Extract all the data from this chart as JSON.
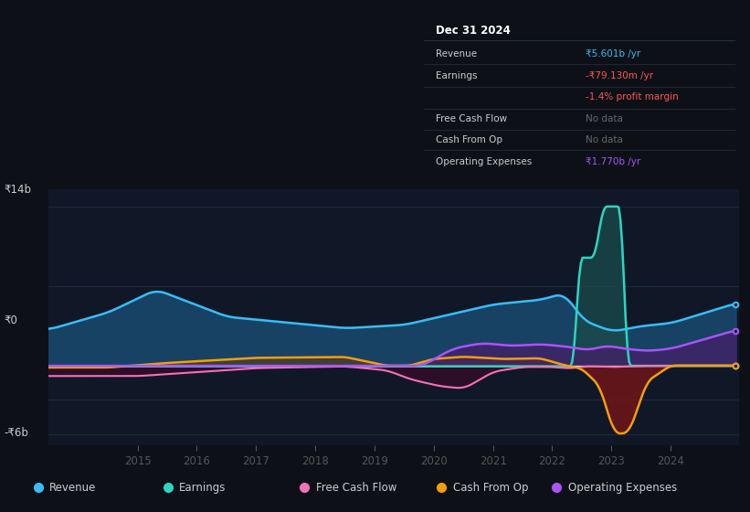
{
  "background_color": "#0d1117",
  "plot_bg_color": "#101828",
  "colors": {
    "revenue": "#38bdf8",
    "earnings": "#2dd4bf",
    "free_cash_flow": "#f472b6",
    "cash_from_op": "#f59e0b",
    "operating_expenses": "#a855f7"
  },
  "ylabel_top": "₹14b",
  "ylabel_zero": "₹0",
  "ylabel_bottom": "-₹6b",
  "xticks": [
    2015,
    2016,
    2017,
    2018,
    2019,
    2020,
    2021,
    2022,
    2023,
    2024
  ],
  "info_box": {
    "title": "Dec 31 2024",
    "revenue_label": "Revenue",
    "revenue_val": "₹5.601b /yr",
    "earnings_label": "Earnings",
    "earnings_val": "-₹79.130m /yr",
    "profit_margin": "-1.4% profit margin",
    "fcf_label": "Free Cash Flow",
    "fcf_val": "No data",
    "cashop_label": "Cash From Op",
    "cashop_val": "No data",
    "opex_label": "Operating Expenses",
    "opex_val": "₹1.770b /yr"
  },
  "legend": [
    {
      "label": "Revenue",
      "color": "#38bdf8"
    },
    {
      "label": "Earnings",
      "color": "#2dd4bf"
    },
    {
      "label": "Free Cash Flow",
      "color": "#f472b6"
    },
    {
      "label": "Cash From Op",
      "color": "#f59e0b"
    },
    {
      "label": "Operating Expenses",
      "color": "#a855f7"
    }
  ]
}
